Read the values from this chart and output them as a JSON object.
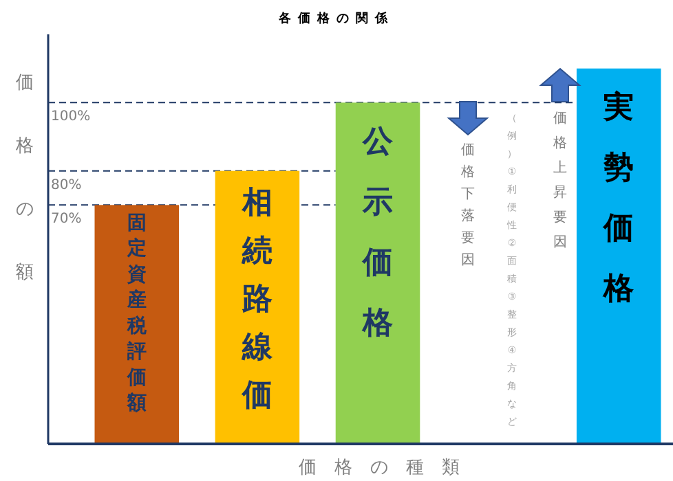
{
  "chart_data": {
    "type": "bar",
    "title": "各価格の関係",
    "xlabel": "価格の種類",
    "ylabel": "価格の額",
    "categories": [
      "固定資産税評価額",
      "相続路線価",
      "公示価格",
      "実勢価格"
    ],
    "values": [
      70,
      80,
      100,
      110
    ],
    "colors": [
      "#c55a11",
      "#ffc000",
      "#92d050",
      "#00b0f0"
    ],
    "ylim": [
      0,
      120
    ],
    "ref_lines": [
      {
        "axis": "y",
        "value": 100,
        "label": "100%",
        "color": "#1f3864",
        "line_style": "dashed"
      },
      {
        "axis": "y",
        "value": 80,
        "label": "80%",
        "color": "#1f3864",
        "line_style": "dashed"
      },
      {
        "axis": "y",
        "value": 70,
        "label": "70%",
        "color": "#1f3864",
        "line_style": "dashed"
      }
    ],
    "annotations": [
      "価格下落要因",
      "（例）①利便性②面積③整形④方角など",
      "価格上昇要因"
    ]
  }
}
